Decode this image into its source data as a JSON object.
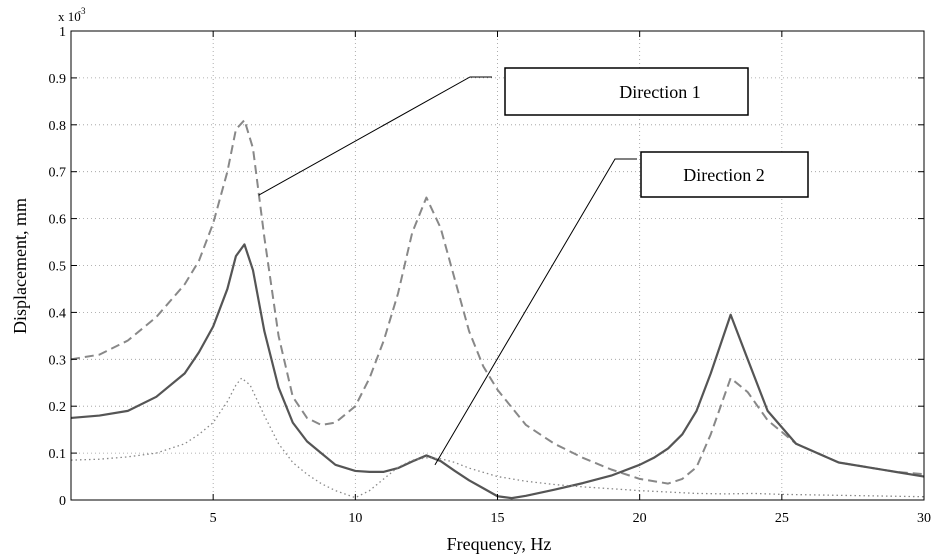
{
  "chart_data": {
    "type": "line",
    "title": "",
    "xlabel": "Frequency, Hz",
    "ylabel": "Displacement, mm",
    "y_multiplier": "x 10",
    "y_multiplier_exponent": "-3",
    "xlim": [
      0,
      30
    ],
    "ylim": [
      0,
      1
    ],
    "x_ticks": [
      5,
      10,
      15,
      20,
      25,
      30
    ],
    "y_ticks": [
      0,
      0.1,
      0.2,
      0.3,
      0.4,
      0.5,
      0.6,
      0.7,
      0.8,
      0.9,
      1
    ],
    "y_tick_labels": [
      "0",
      "0.1",
      "0.2",
      "0.3",
      "0.4",
      "0.5",
      "0.6",
      "0.7",
      "0.8",
      "0.9",
      "1"
    ],
    "grid": true,
    "series": [
      {
        "style": "dashed",
        "color": "#888888",
        "points": [
          [
            0,
            0.3
          ],
          [
            1,
            0.31
          ],
          [
            2,
            0.34
          ],
          [
            3,
            0.39
          ],
          [
            4,
            0.46
          ],
          [
            4.5,
            0.51
          ],
          [
            5,
            0.59
          ],
          [
            5.5,
            0.7
          ],
          [
            5.8,
            0.79
          ],
          [
            6.1,
            0.81
          ],
          [
            6.4,
            0.75
          ],
          [
            6.8,
            0.56
          ],
          [
            7.3,
            0.35
          ],
          [
            7.8,
            0.22
          ],
          [
            8.3,
            0.175
          ],
          [
            8.8,
            0.16
          ],
          [
            9.3,
            0.165
          ],
          [
            10,
            0.2
          ],
          [
            10.5,
            0.26
          ],
          [
            11,
            0.34
          ],
          [
            11.5,
            0.44
          ],
          [
            12,
            0.57
          ],
          [
            12.5,
            0.645
          ],
          [
            13,
            0.58
          ],
          [
            13.5,
            0.47
          ],
          [
            14,
            0.36
          ],
          [
            14.5,
            0.285
          ],
          [
            15,
            0.235
          ],
          [
            16,
            0.16
          ],
          [
            17,
            0.12
          ],
          [
            18,
            0.09
          ],
          [
            19,
            0.065
          ],
          [
            20,
            0.045
          ],
          [
            21,
            0.035
          ],
          [
            21.5,
            0.045
          ],
          [
            22,
            0.07
          ],
          [
            22.5,
            0.14
          ],
          [
            23.2,
            0.26
          ],
          [
            23.8,
            0.23
          ],
          [
            24.5,
            0.17
          ],
          [
            25.5,
            0.12
          ],
          [
            27,
            0.08
          ],
          [
            29,
            0.06
          ],
          [
            30,
            0.055
          ]
        ]
      },
      {
        "style": "solid",
        "color": "#555555",
        "points": [
          [
            0,
            0.175
          ],
          [
            1,
            0.18
          ],
          [
            2,
            0.19
          ],
          [
            3,
            0.22
          ],
          [
            4,
            0.27
          ],
          [
            4.5,
            0.315
          ],
          [
            5,
            0.37
          ],
          [
            5.5,
            0.45
          ],
          [
            5.8,
            0.52
          ],
          [
            6.1,
            0.545
          ],
          [
            6.4,
            0.49
          ],
          [
            6.8,
            0.36
          ],
          [
            7.3,
            0.24
          ],
          [
            7.8,
            0.165
          ],
          [
            8.3,
            0.125
          ],
          [
            8.8,
            0.1
          ],
          [
            9.3,
            0.075
          ],
          [
            10,
            0.062
          ],
          [
            10.5,
            0.06
          ],
          [
            11,
            0.06
          ],
          [
            11.5,
            0.068
          ],
          [
            12,
            0.082
          ],
          [
            12.5,
            0.095
          ],
          [
            13,
            0.083
          ],
          [
            13.5,
            0.062
          ],
          [
            14,
            0.042
          ],
          [
            14.5,
            0.025
          ],
          [
            15,
            0.008
          ],
          [
            15.5,
            0.004
          ],
          [
            16,
            0.009
          ],
          [
            17,
            0.022
          ],
          [
            18,
            0.036
          ],
          [
            19,
            0.052
          ],
          [
            20,
            0.075
          ],
          [
            20.5,
            0.09
          ],
          [
            21,
            0.11
          ],
          [
            21.5,
            0.14
          ],
          [
            22,
            0.19
          ],
          [
            22.5,
            0.27
          ],
          [
            23.2,
            0.395
          ],
          [
            23.8,
            0.3
          ],
          [
            24.5,
            0.19
          ],
          [
            25.5,
            0.12
          ],
          [
            27,
            0.08
          ],
          [
            29,
            0.06
          ],
          [
            30,
            0.05
          ]
        ]
      },
      {
        "style": "dotted",
        "color": "#888888",
        "points": [
          [
            0,
            0.085
          ],
          [
            1,
            0.087
          ],
          [
            2,
            0.092
          ],
          [
            3,
            0.1
          ],
          [
            4,
            0.12
          ],
          [
            4.5,
            0.14
          ],
          [
            5,
            0.165
          ],
          [
            5.5,
            0.21
          ],
          [
            5.8,
            0.245
          ],
          [
            6.0,
            0.26
          ],
          [
            6.3,
            0.245
          ],
          [
            6.8,
            0.18
          ],
          [
            7.3,
            0.12
          ],
          [
            7.8,
            0.08
          ],
          [
            8.3,
            0.055
          ],
          [
            8.8,
            0.035
          ],
          [
            9.3,
            0.02
          ],
          [
            10,
            0.005
          ],
          [
            10.5,
            0.02
          ],
          [
            11,
            0.045
          ],
          [
            11.5,
            0.07
          ],
          [
            12,
            0.085
          ],
          [
            12.5,
            0.09
          ],
          [
            13,
            0.088
          ],
          [
            13.5,
            0.08
          ],
          [
            14,
            0.068
          ],
          [
            15,
            0.05
          ],
          [
            16,
            0.04
          ],
          [
            17,
            0.033
          ],
          [
            18,
            0.028
          ],
          [
            19,
            0.024
          ],
          [
            20,
            0.02
          ],
          [
            21,
            0.017
          ],
          [
            22,
            0.014
          ],
          [
            23,
            0.013
          ],
          [
            24,
            0.014
          ],
          [
            25,
            0.012
          ],
          [
            26,
            0.011
          ],
          [
            27,
            0.01
          ],
          [
            28,
            0.009
          ],
          [
            29,
            0.008
          ],
          [
            30,
            0.007
          ]
        ]
      }
    ],
    "callouts": [
      {
        "label": "Direction 1",
        "arrow_target": [
          6.6,
          0.65
        ]
      },
      {
        "label": "Direction 2",
        "arrow_target": [
          12.8,
          0.075
        ]
      }
    ]
  }
}
